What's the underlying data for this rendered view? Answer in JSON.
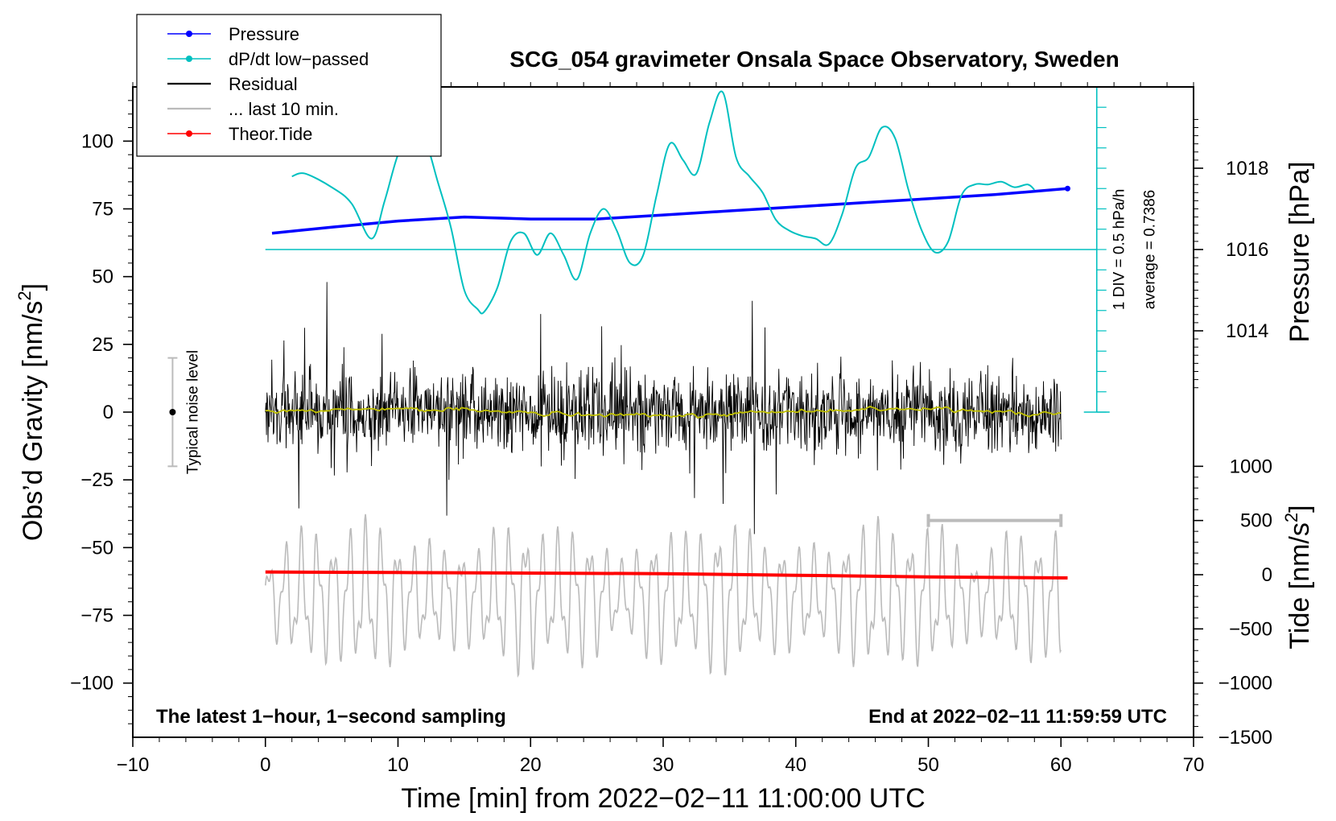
{
  "chart_data": {
    "type": "line",
    "title": "SCG_054 gravimeter Onsala Space Observatory, Sweden",
    "xlabel": "Time [min] from 2022−02−11 11:00:00 UTC",
    "ylabel_left_prefix": "Obs’d Gravity [nm/s",
    "ylabel_left_sup": "2",
    "ylabel_left_suffix": "]",
    "ylabel_right_pressure": "Pressure [hPa]",
    "ylabel_right_tide_prefix": "Tide [nm/s",
    "ylabel_right_tide_sup": "2",
    "ylabel_right_tide_suffix": "]",
    "xlim": [
      -10,
      70
    ],
    "ylim": [
      -120,
      120
    ],
    "x_ticks": [
      -10,
      0,
      10,
      20,
      30,
      40,
      50,
      60,
      70
    ],
    "x_tick_labels": [
      "−10",
      "0",
      "10",
      "20",
      "30",
      "40",
      "50",
      "60",
      "70"
    ],
    "y_ticks": [
      100,
      75,
      50,
      25,
      0,
      -25,
      -50,
      -75,
      -100
    ],
    "y_tick_labels": [
      "100",
      "75",
      "50",
      "25",
      "0",
      "−25",
      "−50",
      "−75",
      "−100"
    ],
    "pressure_axis": {
      "ref_value": 1016,
      "ref_gravity": 60,
      "gravity_per_hPa": 15,
      "ticks": [
        1018,
        1016,
        1014
      ],
      "tick_labels": [
        "1018",
        "1016",
        "1014"
      ]
    },
    "tide_axis": {
      "ref_gravity": -60,
      "gravity_per_unit": 0.04,
      "ticks": [
        1000,
        500,
        0,
        -500,
        -1000,
        -1500
      ],
      "tick_labels": [
        "1000",
        "500",
        "0",
        "−500",
        "−1000",
        "−1500"
      ]
    },
    "dpdt_scale": {
      "label_div": "1 DIV = 0.5 hPa/h",
      "label_avg": "average = 0.7386",
      "x": 62.7,
      "y_bottom": 0,
      "y_top": 120,
      "minor_step": 7.5,
      "zero_line_gravity": 60
    },
    "noise_level": {
      "label": "Typical noise level",
      "x": -7,
      "center": 0,
      "half_range": 20
    },
    "last10_bracket": {
      "x_start": 50,
      "x_end": 60,
      "gravity": -40
    },
    "legend": [
      {
        "label": "Pressure",
        "color": "#0000ff",
        "marker": true
      },
      {
        "label": "dP/dt low−passed",
        "color": "#00c0c0",
        "marker": true
      },
      {
        "label": "Residual",
        "color": "#000000",
        "marker": false
      },
      {
        "label": "... last 10 min.",
        "color": "#bbbbbb",
        "marker": false
      },
      {
        "label": "Theor.Tide",
        "color": "#ff0000",
        "marker": true
      }
    ],
    "series": [
      {
        "name": "Pressure",
        "axis": "pressure",
        "color": "#0000ff",
        "x": [
          0.5,
          5,
          10,
          15,
          20,
          25,
          30,
          35,
          40,
          45,
          50,
          55,
          60.5
        ],
        "values": [
          1016.4,
          1016.55,
          1016.7,
          1016.8,
          1016.75,
          1016.75,
          1016.85,
          1016.95,
          1017.05,
          1017.15,
          1017.25,
          1017.35,
          1017.5
        ]
      },
      {
        "name": "dP/dt low-passed",
        "axis": "gravity",
        "color": "#00c0c0",
        "x": [
          2,
          3,
          5,
          6.5,
          8,
          9,
          10,
          11,
          12,
          13,
          14,
          15,
          16,
          16.5,
          17.5,
          18.5,
          19.5,
          20.5,
          21.5,
          22.5,
          23.5,
          24.5,
          25.5,
          26.5,
          27.5,
          28.5,
          29.5,
          30.5,
          31.5,
          32.5,
          33.5,
          34.5,
          35.5,
          36.5,
          37.5,
          38.5,
          39.5,
          40.5,
          41.5,
          42.5,
          43.5,
          44.5,
          45.5,
          46.5,
          47.5,
          48.5,
          49.5,
          50.5,
          51.5,
          52.5,
          53.5,
          54.5,
          55.5,
          56.5,
          57.5,
          58
        ],
        "values": [
          87,
          88,
          83,
          77,
          64,
          78,
          95,
          103,
          101,
          85,
          68,
          45,
          38,
          37,
          46,
          63,
          66,
          58,
          66,
          58,
          49,
          66,
          75,
          67,
          55,
          58,
          80,
          99,
          93,
          88,
          107,
          118,
          94,
          87,
          81,
          71,
          67,
          65,
          64,
          62,
          73,
          90,
          94,
          105,
          101,
          82,
          67,
          59,
          63,
          80,
          84,
          84,
          85,
          83,
          84,
          82
        ],
        "average": 0.7386
      },
      {
        "name": "Residual",
        "axis": "gravity",
        "color": "#000000",
        "x_range": [
          0,
          60
        ],
        "amplitude": 28
      },
      {
        "name": "Residual smoothed",
        "axis": "gravity",
        "color": "#c0c000",
        "x_range": [
          0,
          60
        ]
      },
      {
        "name": "... last 10 min.",
        "axis": "gravity",
        "color": "#bbbbbb",
        "x_range": [
          0,
          60
        ],
        "offset": -68,
        "amplitude": 20
      },
      {
        "name": "Theor.Tide",
        "axis": "tide",
        "color": "#ff0000",
        "x": [
          0,
          10,
          20,
          30,
          40,
          50,
          60.5
        ],
        "values": [
          25,
          20,
          15,
          10,
          -5,
          -20,
          -30
        ]
      }
    ],
    "annotations": {
      "bottom_left": "The latest 1−hour, 1−second sampling",
      "bottom_right": "End at 2022−02−11 11:59:59 UTC"
    }
  }
}
